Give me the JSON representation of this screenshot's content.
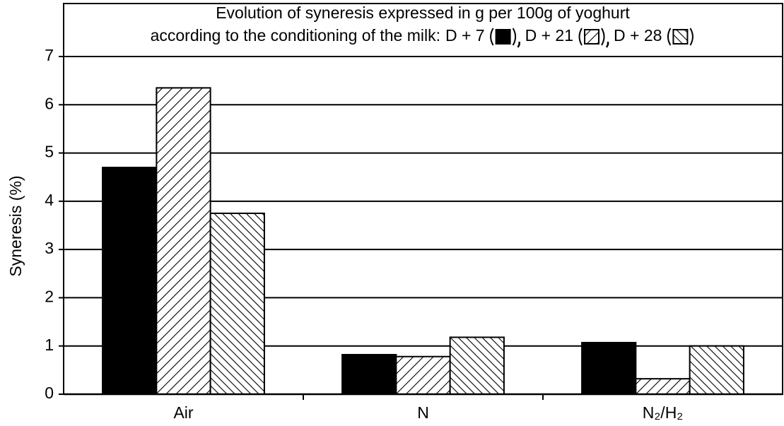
{
  "chart_data": {
    "type": "bar",
    "title": "Evolution of syneresis expressed in g per 100g of yoghurt",
    "subtitle": "according to the conditioning of the milk:",
    "y_label": "Syneresis (%)",
    "categories": [
      "Air",
      "N",
      "N₂/H₂"
    ],
    "series": [
      {
        "name": "D + 7",
        "color": "#000000",
        "hatch": "solid",
        "values": [
          4.7,
          0.82,
          1.07
        ]
      },
      {
        "name": "D + 21",
        "color": "#000000",
        "hatch": "forward",
        "values": [
          6.35,
          0.78,
          0.32
        ]
      },
      {
        "name": "D + 28",
        "color": "#000000",
        "hatch": "backward",
        "values": [
          3.75,
          1.18,
          1.0
        ]
      }
    ],
    "ylim": [
      0,
      7
    ],
    "yticks": [
      0,
      1,
      2,
      3,
      4,
      5,
      6,
      7
    ],
    "grid": true
  }
}
